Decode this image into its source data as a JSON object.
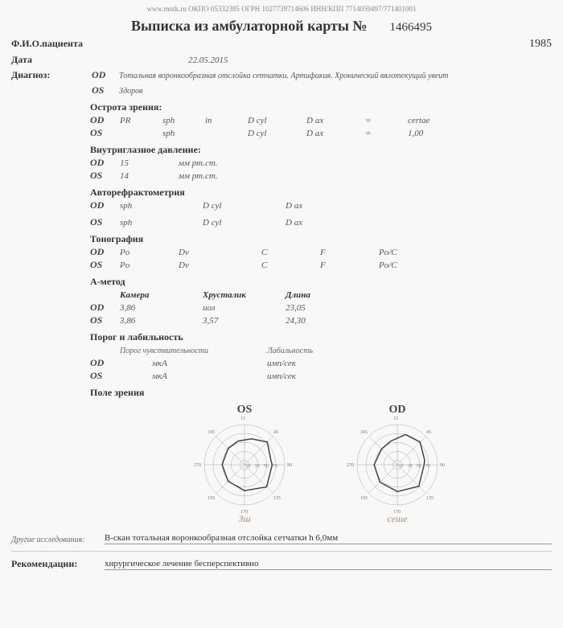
{
  "header": {
    "topinfo": "www.mntk.ru   ОКПО 05332385   ОГРН 1027739714606   ИНН/КПП 7714059497/771401001",
    "title": "Выписка из амбулаторной карты №",
    "docnum": "1466495"
  },
  "patient": {
    "fio_label": "Ф.И.О.пациента",
    "year": "1985",
    "date_label": "Дата",
    "date": "22.05.2015"
  },
  "diagnosis": {
    "label": "Диагноз:",
    "od_label": "OD",
    "od_text": "Тотальная воронкообразная отслойка сетчатки. Артифакия. Хронический вялотекущий увеит",
    "os_label": "OS",
    "os_text": "Здоров"
  },
  "acuity": {
    "h": "Острота зрения:",
    "rows": {
      "od": {
        "eye": "OD",
        "c1": "PR",
        "c2": "sph",
        "c3": "in",
        "c4": "D cyl",
        "c5": "D ax",
        "c6": "=",
        "c7": "certae"
      },
      "os": {
        "eye": "OS",
        "c1": "",
        "c2": "sph",
        "c3": "",
        "c4": "D cyl",
        "c5": "D ax",
        "c6": "=",
        "c7": "1,00"
      }
    }
  },
  "iop": {
    "h": "Внутриглазное давление:",
    "rows": {
      "od": {
        "eye": "OD",
        "val": "15",
        "unit": "мм рт.ст."
      },
      "os": {
        "eye": "OS",
        "val": "14",
        "unit": "мм рт.ст."
      }
    }
  },
  "autoref": {
    "h": "Авторефрактометрия",
    "rows": {
      "od": {
        "eye": "OD",
        "c1": "sph",
        "c2": "D cyl",
        "c3": "D ax"
      },
      "os": {
        "eye": "OS",
        "c1": "sph",
        "c2": "D cyl",
        "c3": "D ax"
      }
    }
  },
  "tono": {
    "h": "Тонография",
    "rows": {
      "od": {
        "eye": "OD",
        "c1": "Po",
        "c2": "Dv",
        "c3": "C",
        "c4": "F",
        "c5": "Po/C"
      },
      "os": {
        "eye": "OS",
        "c1": "Po",
        "c2": "Dv",
        "c3": "C",
        "c4": "F",
        "c5": "Po/C"
      }
    }
  },
  "amethod": {
    "h": "А-метод",
    "cols": {
      "c1": "Камера",
      "c2": "Хрусталик",
      "c3": "Длина"
    },
    "rows": {
      "od": {
        "eye": "OD",
        "c1": "3,86",
        "c2": "иол",
        "c3": "23,05"
      },
      "os": {
        "eye": "OS",
        "c1": "3,86",
        "c2": "3,57",
        "c3": "24,30"
      }
    }
  },
  "lability": {
    "h": "Порог и лабильность",
    "sub1": "Порог чувствительности",
    "sub2": "Лабильность",
    "rows": {
      "od": {
        "eye": "OD",
        "c1": "мкА",
        "c2": "имп/сек"
      },
      "os": {
        "eye": "OS",
        "c1": "мкА",
        "c2": "имп/сек"
      }
    }
  },
  "field": {
    "h": "Поле зрения",
    "charts": {
      "os": {
        "label": "OS",
        "rings": [
          10,
          30,
          50,
          70,
          90
        ],
        "ring_labels": [
          10,
          30,
          50,
          70
        ],
        "axis_labels": [
          "90",
          "45",
          "135",
          "15",
          "270",
          "195",
          "170",
          "345"
        ],
        "contour": [
          [
            90,
            62
          ],
          [
            135,
            70
          ],
          [
            180,
            58
          ],
          [
            225,
            52
          ],
          [
            270,
            50
          ],
          [
            315,
            52
          ],
          [
            345,
            55
          ],
          [
            15,
            60
          ],
          [
            45,
            72
          ],
          [
            80,
            60
          ]
        ],
        "stroke": "#444",
        "grid": "#aaa",
        "hand_note": "3ш"
      },
      "od": {
        "label": "OD",
        "rings": [
          10,
          30,
          50,
          70,
          90
        ],
        "ring_labels": [
          10,
          30,
          50,
          70
        ],
        "axis_labels": [
          "90",
          "45",
          "135",
          "15",
          "270",
          "195",
          "170",
          "345"
        ],
        "contour": [
          [
            90,
            60
          ],
          [
            135,
            68
          ],
          [
            180,
            60
          ],
          [
            225,
            55
          ],
          [
            270,
            52
          ],
          [
            315,
            50
          ],
          [
            345,
            55
          ],
          [
            15,
            70
          ],
          [
            45,
            72
          ],
          [
            80,
            62
          ]
        ],
        "stroke": "#444",
        "grid": "#aaa",
        "hand_note": "сеше"
      }
    }
  },
  "other": {
    "label": "Другие исследования:",
    "text": "В-скан тотальная воронкообразная отслойка сетчатки h 6,0мм"
  },
  "recom": {
    "label": "Рекомендации:",
    "text": "хирургическое лечение бесперспективно"
  }
}
